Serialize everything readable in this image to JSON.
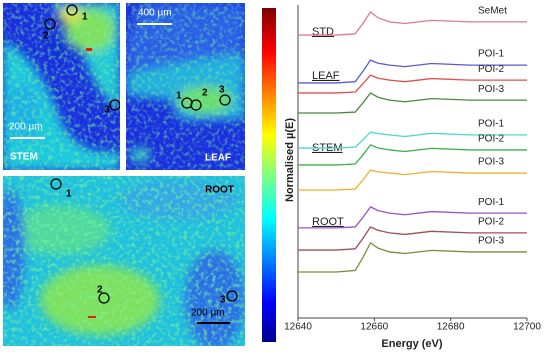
{
  "chart_data": {
    "type": "line",
    "xlabel": "Energy (eV)",
    "ylabel": "Normalised µ(E)",
    "x": [
      12640,
      12650,
      12655,
      12657,
      12659,
      12661,
      12664,
      12668,
      12675,
      12685,
      12700
    ],
    "xlim": [
      12640,
      12700
    ],
    "xticks": [
      12640,
      12660,
      12680,
      12700
    ],
    "ylim": [
      0,
      10
    ],
    "groups": [
      "STD",
      "LEAF",
      "STEM",
      "ROOT"
    ],
    "series": [
      {
        "name": "SeMet",
        "color": "#e07a8e",
        "values": [
          9.04,
          9.04,
          9.08,
          9.41,
          9.78,
          9.59,
          9.46,
          9.41,
          9.51,
          9.46,
          9.46
        ]
      },
      {
        "name": "POI-1",
        "color": "#5a5ad6",
        "values": [
          7.51,
          7.51,
          7.55,
          7.88,
          8.24,
          8.14,
          8.08,
          8.03,
          8.13,
          8.08,
          8.08
        ]
      },
      {
        "name": "POI-2",
        "color": "#e0504a",
        "values": [
          7.19,
          7.19,
          7.22,
          7.48,
          7.76,
          7.66,
          7.6,
          7.55,
          7.65,
          7.6,
          7.6
        ]
      },
      {
        "name": "POI-3",
        "color": "#4a8a3a",
        "values": [
          6.55,
          6.55,
          6.58,
          6.87,
          7.19,
          7.05,
          6.96,
          6.91,
          7.01,
          6.96,
          6.96
        ]
      },
      {
        "name": "POI-1",
        "color": "#4fd6d0",
        "values": [
          5.43,
          5.43,
          5.46,
          5.69,
          5.94,
          5.89,
          5.85,
          5.8,
          5.9,
          5.85,
          5.85
        ]
      },
      {
        "name": "POI-2",
        "color": "#3cb04a",
        "values": [
          4.89,
          4.89,
          4.92,
          5.21,
          5.53,
          5.43,
          5.37,
          5.32,
          5.42,
          5.37,
          5.37
        ]
      },
      {
        "name": "POI-3",
        "color": "#f0b030",
        "values": [
          4.09,
          4.09,
          4.12,
          4.41,
          4.73,
          4.67,
          4.63,
          4.58,
          4.68,
          4.63,
          4.63
        ]
      },
      {
        "name": "POI-1",
        "color": "#9a50c8",
        "values": [
          2.88,
          2.88,
          2.91,
          3.21,
          3.55,
          3.43,
          3.35,
          3.3,
          3.4,
          3.35,
          3.35
        ]
      },
      {
        "name": "POI-2",
        "color": "#a05050",
        "values": [
          2.17,
          2.17,
          2.21,
          2.54,
          2.91,
          2.8,
          2.72,
          2.67,
          2.77,
          2.72,
          2.72
        ]
      },
      {
        "name": "POI-3",
        "color": "#7a8a40",
        "values": [
          1.47,
          1.47,
          1.52,
          1.93,
          2.4,
          2.23,
          2.11,
          2.06,
          2.16,
          2.11,
          2.11
        ]
      }
    ]
  },
  "images": {
    "stem": {
      "label": "STEM",
      "scale": "200 µm",
      "points": [
        "1",
        "2",
        "3"
      ]
    },
    "leaf": {
      "label": "LEAF",
      "scale": "400 µm",
      "points": [
        "1",
        "2",
        "3"
      ]
    },
    "root": {
      "label": "ROOT",
      "scale": "200 µm",
      "points": [
        "1",
        "2",
        "3"
      ]
    }
  }
}
